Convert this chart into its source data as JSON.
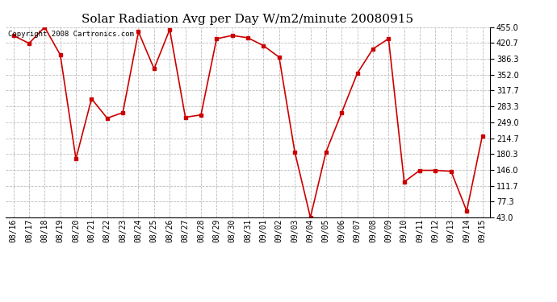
{
  "title": "Solar Radiation Avg per Day W/m2/minute 20080915",
  "copyright_text": "Copyright 2008 Cartronics.com",
  "dates": [
    "08/16",
    "08/17",
    "08/18",
    "08/19",
    "08/20",
    "08/21",
    "08/22",
    "08/23",
    "08/24",
    "08/25",
    "08/26",
    "08/27",
    "08/28",
    "08/29",
    "08/30",
    "08/31",
    "09/01",
    "09/02",
    "09/03",
    "09/04",
    "09/05",
    "09/06",
    "09/07",
    "09/08",
    "09/09",
    "09/10",
    "09/11",
    "09/12",
    "09/13",
    "09/14",
    "09/15"
  ],
  "values": [
    437,
    420,
    455,
    395,
    170,
    300,
    258,
    270,
    445,
    365,
    450,
    260,
    265,
    430,
    437,
    432,
    415,
    390,
    185,
    43,
    185,
    270,
    355,
    408,
    430,
    120,
    145,
    145,
    143,
    57,
    220
  ],
  "line_color": "#cc0000",
  "marker": "s",
  "marker_size": 2.5,
  "bg_color": "#ffffff",
  "plot_bg_color": "#ffffff",
  "grid_color": "#bbbbbb",
  "grid_style": "--",
  "ymin": 43.0,
  "ymax": 455.0,
  "yticks": [
    43.0,
    77.3,
    111.7,
    146.0,
    180.3,
    214.7,
    249.0,
    283.3,
    317.7,
    352.0,
    386.3,
    420.7,
    455.0
  ],
  "title_fontsize": 11,
  "tick_fontsize": 7,
  "copyright_fontsize": 6.5
}
